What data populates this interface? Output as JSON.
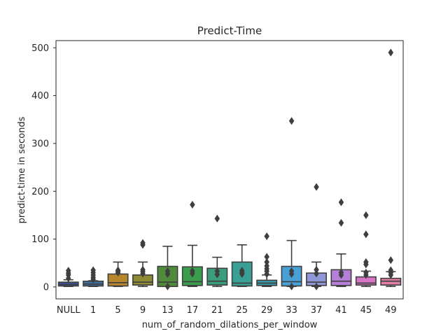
{
  "chart_data": {
    "type": "box",
    "title": "Predict-Time",
    "xlabel": "num_of_random_dilations_per_window",
    "ylabel": "predict-time in seconds",
    "ylim": [
      -25,
      515
    ],
    "yticks": [
      0,
      100,
      200,
      300,
      400,
      500
    ],
    "grid": false,
    "categories": [
      "NULL",
      "1",
      "5",
      "9",
      "13",
      "17",
      "21",
      "25",
      "29",
      "33",
      "37",
      "41",
      "45",
      "49"
    ],
    "boxes": [
      {
        "category": "NULL",
        "color": "#3a4f96",
        "whislo": 1,
        "q1": 2,
        "med": 5,
        "q3": 10,
        "whishi": 15,
        "fliers": [
          18,
          25,
          29,
          34
        ]
      },
      {
        "category": "1",
        "color": "#3c6fa0",
        "whislo": 1,
        "q1": 2,
        "med": 6,
        "q3": 12,
        "whishi": 13,
        "fliers": [
          16,
          20,
          25,
          30,
          35
        ]
      },
      {
        "category": "5",
        "color": "#b8862c",
        "whislo": 1,
        "q1": 2,
        "med": 9,
        "q3": 27,
        "whishi": 52,
        "fliers": [
          30,
          33,
          35
        ]
      },
      {
        "category": "9",
        "color": "#8f8a36",
        "whislo": 1,
        "q1": 4,
        "med": 10,
        "q3": 25,
        "whishi": 52,
        "fliers": [
          28,
          32,
          36,
          88,
          92
        ]
      },
      {
        "category": "13",
        "color": "#508b3b",
        "whislo": 1,
        "q1": 1,
        "med": 10,
        "q3": 43,
        "whishi": 85,
        "fliers": [
          1,
          27,
          33
        ]
      },
      {
        "category": "17",
        "color": "#3a9e4c",
        "whislo": 1,
        "q1": 3,
        "med": 11,
        "q3": 42,
        "whishi": 87,
        "fliers": [
          28,
          33,
          172
        ]
      },
      {
        "category": "21",
        "color": "#3a9e7c",
        "whislo": 1,
        "q1": 4,
        "med": 12,
        "q3": 39,
        "whishi": 62,
        "fliers": [
          26,
          33,
          143
        ]
      },
      {
        "category": "25",
        "color": "#3aa096",
        "whislo": 1,
        "q1": 2,
        "med": 8,
        "q3": 52,
        "whishi": 88,
        "fliers": [
          27,
          30,
          34
        ]
      },
      {
        "category": "29",
        "color": "#3a9ca8",
        "whislo": 1,
        "q1": 3,
        "med": 8,
        "q3": 14,
        "whishi": 25,
        "fliers": [
          27,
          33,
          38,
          44,
          52,
          63,
          106
        ]
      },
      {
        "category": "33",
        "color": "#47a0d6",
        "whislo": 1,
        "q1": 2,
        "med": 11,
        "q3": 43,
        "whishi": 97,
        "fliers": [
          1,
          27,
          33,
          347
        ]
      },
      {
        "category": "37",
        "color": "#8f97d8",
        "whislo": 1,
        "q1": 3,
        "med": 10,
        "q3": 29,
        "whishi": 52,
        "fliers": [
          1,
          28,
          36,
          209
        ]
      },
      {
        "category": "41",
        "color": "#b57fd8",
        "whislo": 1,
        "q1": 3,
        "med": 12,
        "q3": 36,
        "whishi": 69,
        "fliers": [
          25,
          30,
          134,
          177
        ]
      },
      {
        "category": "45",
        "color": "#d675c6",
        "whislo": 1,
        "q1": 4,
        "med": 8,
        "q3": 21,
        "whishi": 33,
        "fliers": [
          25,
          30,
          47,
          52,
          110,
          150
        ]
      },
      {
        "category": "49",
        "color": "#e07ea6",
        "whislo": 1,
        "q1": 4,
        "med": 12,
        "q3": 18,
        "whishi": 32,
        "fliers": [
          25,
          30,
          35,
          56,
          490
        ]
      }
    ]
  }
}
